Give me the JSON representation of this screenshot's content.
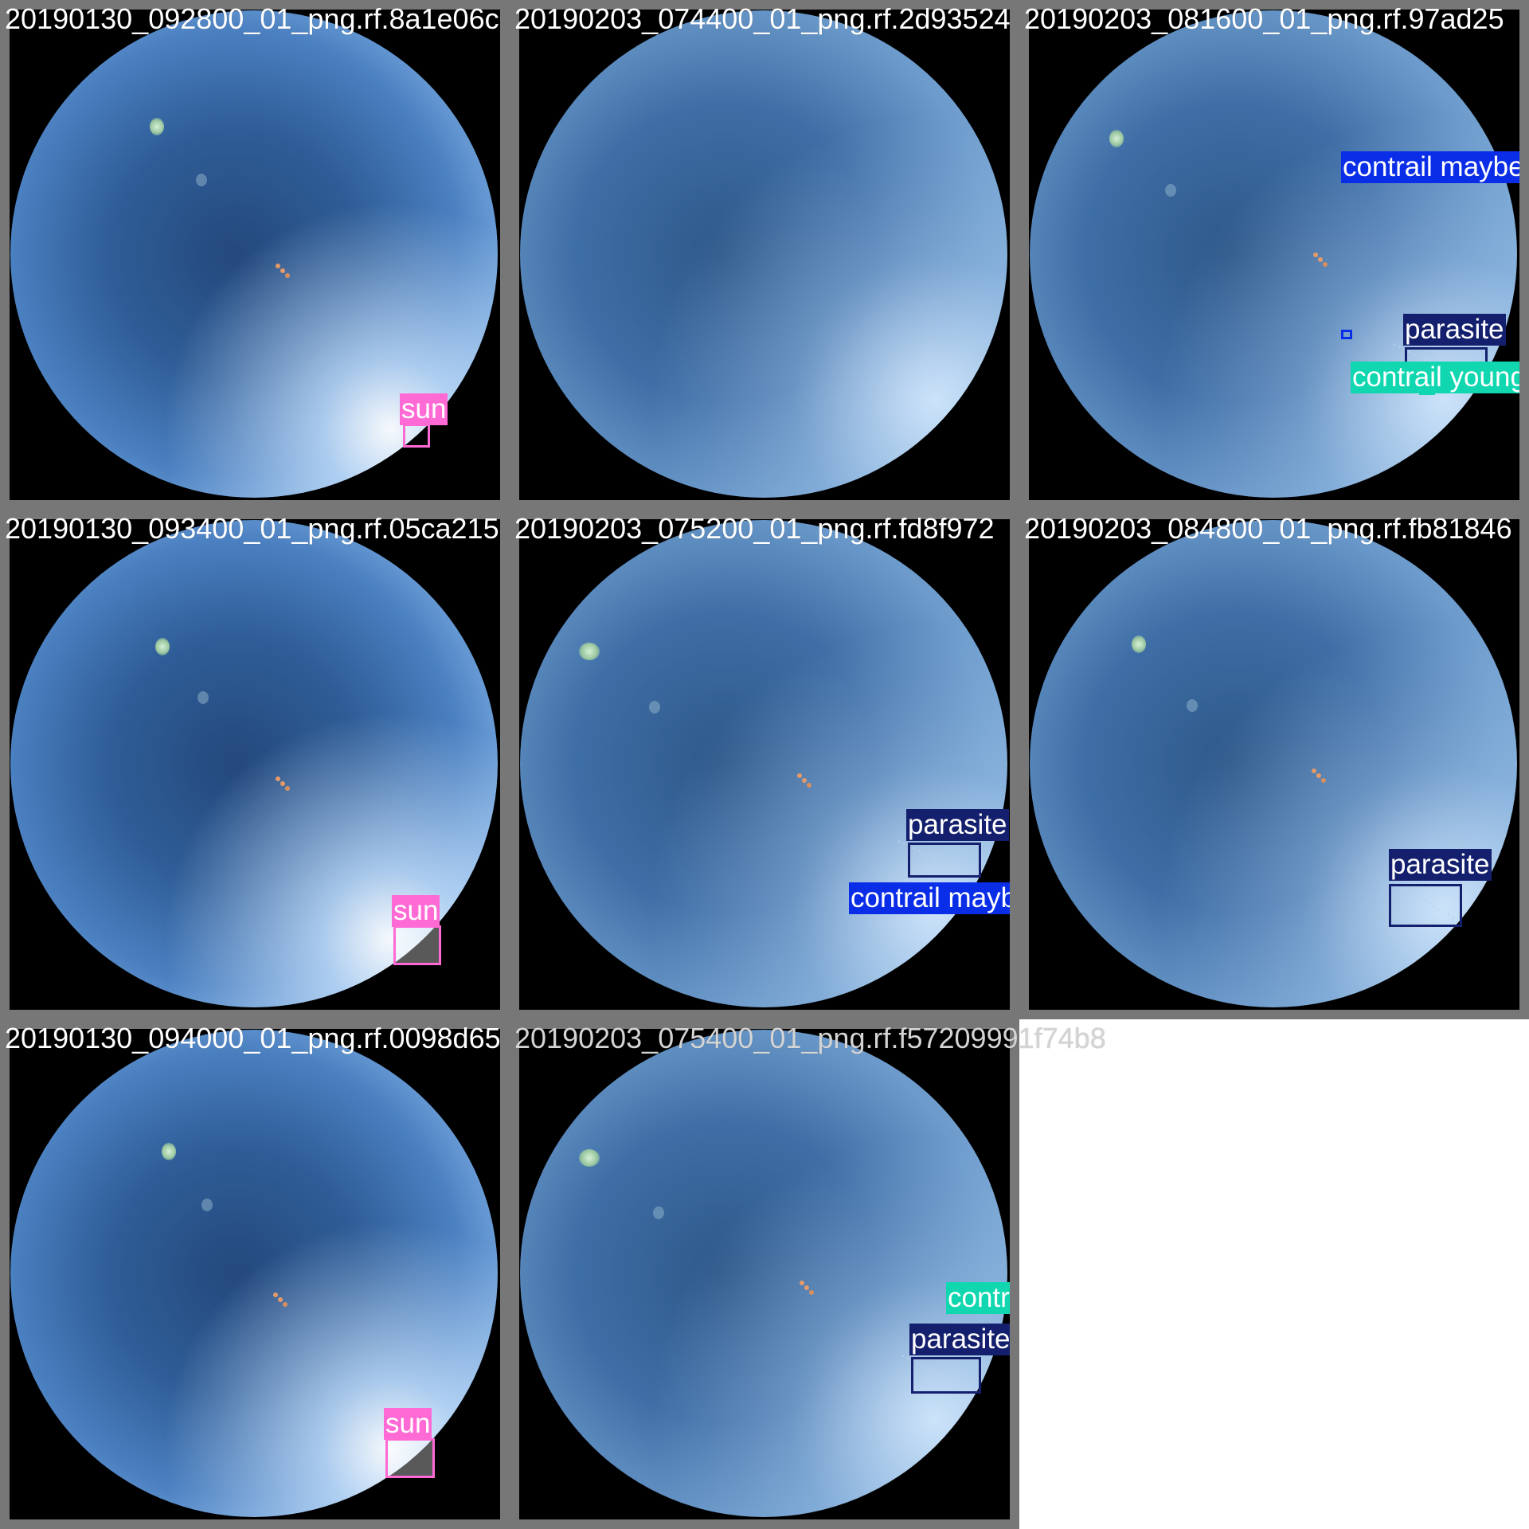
{
  "colors": {
    "sun": "#ff6ad5",
    "parasite": "#14206e",
    "contrail_maybe": "#0a2ee8",
    "contrail_young": "#10d7b0",
    "tile_border": "#777777",
    "background": "#ffffff"
  },
  "tiles": [
    {
      "caption": "20190130_092800_01_png.rf.8a1e06c",
      "sky": "bright",
      "detections": [
        {
          "label": "sun",
          "class": "sun"
        }
      ]
    },
    {
      "caption": "20190203_074400_01_png.rf.2d93524",
      "sky": "soft",
      "detections": []
    },
    {
      "caption": "20190203_081600_01_png.rf.97ad25",
      "sky": "soft",
      "detections": [
        {
          "label": "contrail maybe",
          "class": "contrail_maybe"
        },
        {
          "label": "parasite",
          "class": "parasite"
        },
        {
          "label": "contrail young",
          "class": "contrail_young"
        }
      ]
    },
    {
      "caption": "20190130_093400_01_png.rf.05ca215",
      "sky": "bright",
      "detections": [
        {
          "label": "sun",
          "class": "sun"
        }
      ]
    },
    {
      "caption": "20190203_075200_01_png.rf.fd8f972",
      "sky": "soft",
      "detections": [
        {
          "label": "parasite",
          "class": "parasite"
        },
        {
          "label": "contrail maybe",
          "class": "contrail_maybe"
        }
      ]
    },
    {
      "caption": "20190203_084800_01_png.rf.fb81846",
      "sky": "soft",
      "detections": [
        {
          "label": "parasite",
          "class": "parasite"
        }
      ]
    },
    {
      "caption": "20190130_094000_01_png.rf.0098d65",
      "sky": "bright",
      "detections": [
        {
          "label": "sun",
          "class": "sun"
        }
      ]
    },
    {
      "caption": "20190203_075400_01_png.rf.f57209991f74b8",
      "sky": "soft",
      "detections": [
        {
          "label": "contrail young",
          "class": "contrail_young"
        },
        {
          "label": "parasite",
          "class": "parasite"
        }
      ]
    }
  ]
}
